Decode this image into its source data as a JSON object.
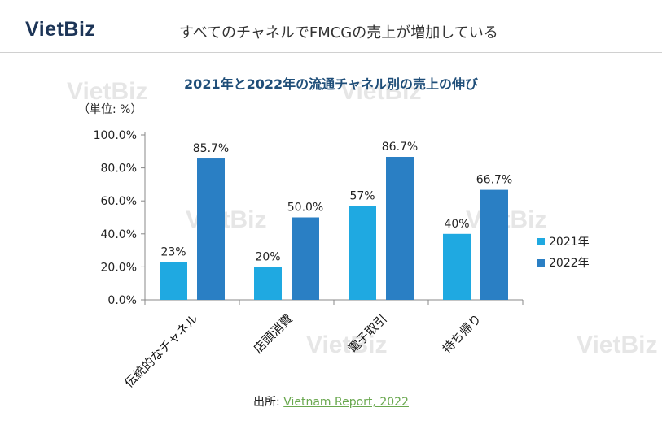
{
  "header": {
    "logo": "VietBiz",
    "title": "すべてのチャネルでFMCGの売上が増加している"
  },
  "watermark_text": "VietBiz",
  "source": {
    "prefix": "出所: ",
    "link": "Vietnam Report, 2022"
  },
  "colors": {
    "series_2021": "#1fa9e1",
    "series_2022": "#2a7fc4",
    "title": "#1f4e79",
    "source_link": "#6aa84f"
  },
  "chart_data": {
    "type": "bar",
    "title": "2021年と2022年の流通チャネル別の売上の伸び",
    "unit_label": "（単位: %）",
    "categories": [
      "伝統的なチャネル",
      "店頭消費",
      "電子取引",
      "持ち帰り"
    ],
    "series": [
      {
        "name": "2021年",
        "values": [
          23,
          20,
          57,
          40
        ],
        "labels": [
          "23%",
          "20%",
          "57%",
          "40%"
        ]
      },
      {
        "name": "2022年",
        "values": [
          85.7,
          50.0,
          86.7,
          66.7
        ],
        "labels": [
          "85.7%",
          "50.0%",
          "86.7%",
          "66.7%"
        ]
      }
    ],
    "yticks": [
      "0.0%",
      "20.0%",
      "40.0%",
      "60.0%",
      "80.0%",
      "100.0%"
    ],
    "ylim": [
      0,
      100
    ],
    "grid": false,
    "legend_position": "right"
  }
}
